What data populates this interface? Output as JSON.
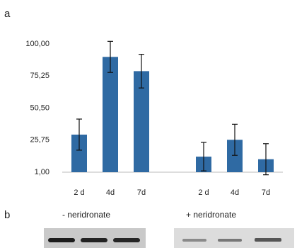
{
  "panel_labels": [
    "a",
    "b"
  ],
  "blot": {
    "labels": [
      "- neridronate",
      "+ neridronate"
    ]
  },
  "chart_data": {
    "type": "bar",
    "categories": [
      "2 d",
      "4d",
      "7d",
      null,
      "2 d",
      "4d",
      "7d"
    ],
    "values": [
      30,
      90,
      79,
      null,
      13,
      26,
      11
    ],
    "errors": [
      12,
      12,
      13,
      null,
      11,
      12,
      12
    ],
    "color": "#2f6aa3",
    "ylim": [
      1,
      100
    ],
    "yticks": [
      {
        "value": 1,
        "label": "1,00"
      },
      {
        "value": 25.75,
        "label": "25,75"
      },
      {
        "value": 50.5,
        "label": "50,50"
      },
      {
        "value": 75.25,
        "label": "75,25"
      },
      {
        "value": 100,
        "label": "100,00"
      }
    ],
    "grid": false
  }
}
